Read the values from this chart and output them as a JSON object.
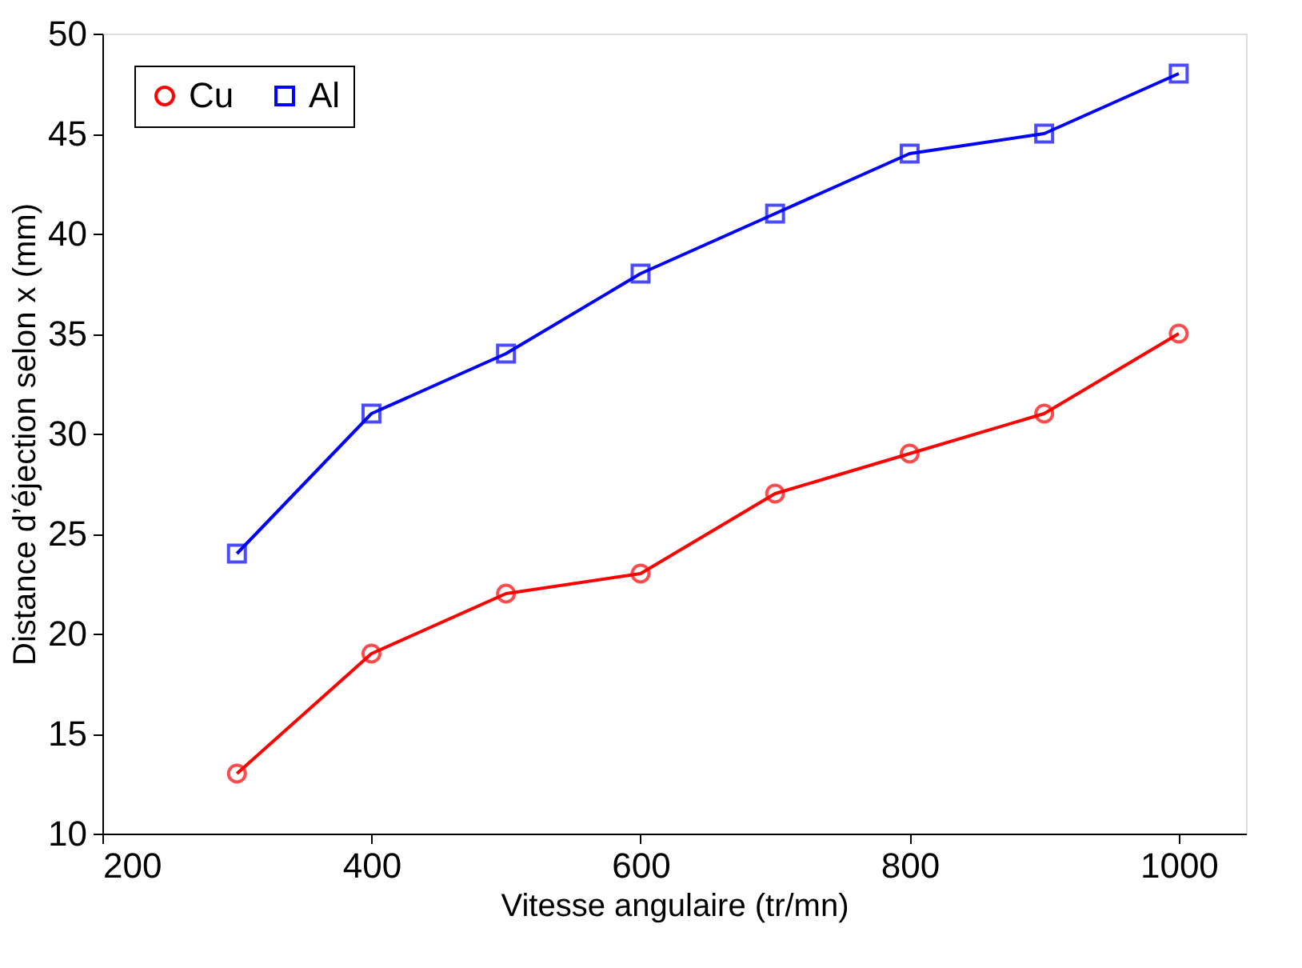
{
  "chart_data": {
    "type": "line",
    "xlabel": "Vitesse angulaire (tr/mn)",
    "ylabel": "Distance d’éjection selon x (mm)",
    "x": [
      300,
      400,
      500,
      600,
      700,
      800,
      900,
      1000
    ],
    "series": [
      {
        "name": "Cu",
        "color": "#ff0000",
        "marker": "circle",
        "values": [
          13,
          19,
          22,
          23,
          27,
          29,
          31,
          35
        ]
      },
      {
        "name": "Al",
        "color": "#0000ff",
        "marker": "square",
        "values": [
          24,
          31,
          34,
          38,
          41,
          44,
          45,
          48
        ]
      }
    ],
    "xlim": [
      200,
      1050
    ],
    "xticks": [
      200,
      400,
      600,
      800,
      1000
    ],
    "ylim": [
      10,
      50
    ],
    "yticks": [
      10,
      15,
      20,
      25,
      30,
      35,
      40,
      45,
      50
    ],
    "grid": false,
    "legend": "top left",
    "line_style": "solid"
  }
}
